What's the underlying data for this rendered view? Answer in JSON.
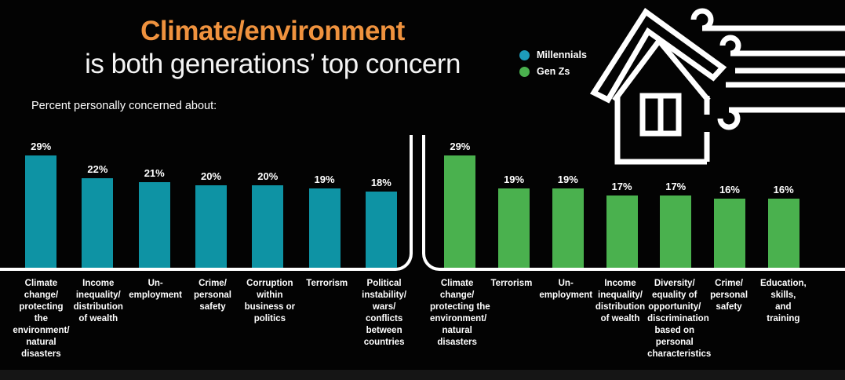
{
  "header": {
    "title_line1": "Climate/environment",
    "title_line2": "is both generations’ top concern",
    "title_accent_color": "#ef923e",
    "subtitle": "Percent personally concerned about:"
  },
  "legend": {
    "items": [
      {
        "label": "Millennials",
        "color": "#1d9cba"
      },
      {
        "label": "Gen Zs",
        "color": "#4ab14e"
      }
    ]
  },
  "colors": {
    "background": "#030303",
    "millennials_bar": "#0e93a4",
    "genzs_bar": "#4ab14e",
    "axis_line": "#ffffff"
  },
  "chart_data": [
    {
      "type": "bar",
      "series_name": "Millennials",
      "bar_color": "#0e93a4",
      "value_suffix": "%",
      "grid": false,
      "ylim": [
        0,
        35
      ],
      "categories": [
        "Climate\nchange/\nprotecting\nthe\nenvironment/\nnatural\ndisasters",
        "Income\ninequality/\ndistribution\nof wealth",
        "Un-\nemployment",
        "Crime/\npersonal\nsafety",
        "Corruption\nwithin\nbusiness or\npolitics",
        "Terrorism",
        "Political\ninstability/\nwars/\nconflicts\nbetween\ncountries"
      ],
      "values": [
        29,
        22,
        21,
        20,
        20,
        19,
        18
      ]
    },
    {
      "type": "bar",
      "series_name": "Gen Zs",
      "bar_color": "#4ab14e",
      "value_suffix": "%",
      "grid": false,
      "ylim": [
        0,
        35
      ],
      "categories": [
        "Climate\nchange/\nprotecting the\nenvironment/\nnatural\ndisasters",
        "Terrorism",
        "Un-\nemployment",
        "Income\ninequality/\ndistribution\nof wealth",
        "Diversity/\nequality of\nopportunity/\ndiscrimination\nbased on\npersonal\ncharacteristics",
        "Crime/\npersonal\nsafety",
        "Education,\nskills,\nand\ntraining"
      ],
      "values": [
        29,
        19,
        19,
        17,
        17,
        16,
        16
      ]
    }
  ]
}
